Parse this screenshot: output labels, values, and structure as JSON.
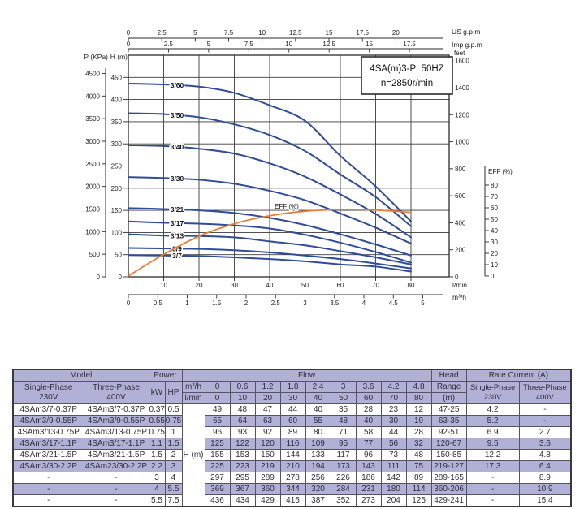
{
  "title_box": {
    "line1": "4SA(m)3-P  50HZ",
    "line2": "n=2850r/min"
  },
  "chart_data": {
    "type": "line",
    "title": "4SA(m)3-P 50HZ",
    "subtitle": "n=2850r/min",
    "x": [
      0,
      10,
      20,
      30,
      40,
      50,
      60,
      70,
      80
    ],
    "x_unit": "l/min",
    "ylabel": "H (m)",
    "ylim": [
      0,
      500
    ],
    "xlim": [
      0,
      90
    ],
    "grid": true,
    "series": [
      {
        "name": "3/60",
        "values": [
          436,
          434,
          429,
          415,
          387,
          352,
          273,
          204,
          125
        ]
      },
      {
        "name": "3/50",
        "values": [
          369,
          367,
          360,
          344,
          320,
          284,
          231,
          180,
          114
        ]
      },
      {
        "name": "3/40",
        "values": [
          297,
          295,
          289,
          278,
          256,
          226,
          186,
          142,
          89
        ]
      },
      {
        "name": "3/30",
        "values": [
          225,
          223,
          219,
          210,
          194,
          173,
          143,
          111,
          75
        ]
      },
      {
        "name": "3/21",
        "values": [
          155,
          153,
          150,
          144,
          133,
          117,
          96,
          73,
          48
        ]
      },
      {
        "name": "3/17",
        "values": [
          125,
          122,
          120,
          116,
          109,
          95,
          77,
          56,
          32
        ]
      },
      {
        "name": "3/13",
        "values": [
          96,
          93,
          92,
          89,
          80,
          71,
          58,
          44,
          28
        ]
      },
      {
        "name": "3/9",
        "values": [
          65,
          64,
          63,
          60,
          55,
          48,
          40,
          30,
          19
        ]
      },
      {
        "name": "3/7",
        "values": [
          49,
          48,
          47,
          44,
          40,
          35,
          28,
          23,
          12
        ]
      }
    ],
    "efficiency_series": {
      "name": "EFF (%)",
      "values": [
        0,
        19,
        35,
        46,
        53,
        57,
        58.5,
        58,
        56
      ]
    },
    "axes": {
      "us_gpm": {
        "label": "US g.p.m",
        "ticks": [
          0,
          2.5,
          5,
          7.5,
          10,
          12.5,
          15,
          17.5,
          20
        ]
      },
      "imp_gpm": {
        "label": "Imp g.p.m",
        "ticks": [
          0,
          2.5,
          5,
          7.5,
          10,
          12.5,
          15,
          17.5
        ]
      },
      "p_kpa": {
        "label": "P (KPa)",
        "ticks": [
          0,
          500,
          1000,
          1500,
          2000,
          2500,
          3000,
          3500,
          4000,
          4500
        ]
      },
      "h_m": {
        "label": "H (m)",
        "ticks": [
          0,
          50,
          100,
          150,
          200,
          250,
          300,
          350,
          400,
          450
        ]
      },
      "feet": {
        "label": "feet",
        "ticks": [
          0,
          200,
          400,
          600,
          800,
          1000,
          1200,
          1400,
          1600
        ]
      },
      "lmin": {
        "label": "l/min",
        "ticks": [
          10,
          20,
          30,
          40,
          50,
          60,
          70,
          80
        ]
      },
      "m3h": {
        "label": "m³/h",
        "ticks": [
          0,
          0.5,
          1,
          1.5,
          2,
          2.5,
          3,
          3.5,
          4,
          4.5,
          5
        ]
      },
      "eff": {
        "label": "EFF (%)",
        "ticks": [
          0,
          10,
          20,
          30,
          40,
          50,
          60,
          70,
          80
        ]
      }
    },
    "colors": {
      "curve": "#2e4c9a",
      "efficiency": "#ea7d36",
      "grid": "#3a3a3a",
      "text": "#1f1f1f"
    }
  },
  "table": {
    "stripe_color": "#b1b1d7",
    "header": {
      "model": "Model",
      "power": "Power",
      "flow": "Flow",
      "head": "Head",
      "rate_current": "Rate Current (A)",
      "single_phase": "Single-Phase\n230V",
      "three_phase": "Three-Phase\n400V",
      "kw": "kW",
      "hp": "HP",
      "m3h": "m³/h",
      "lmin": "l/min",
      "range": "Range",
      "range_unit": "(m)",
      "rc_single": "Single-Phase\n230V",
      "rc_three": "Three-Phase\n400V"
    },
    "h_m_label": "H (m)",
    "flow_m3h": [
      "0",
      "0.6",
      "1.2",
      "1.8",
      "2.4",
      "3",
      "3.6",
      "4.2",
      "4.8"
    ],
    "flow_lmin": [
      "0",
      "10",
      "20",
      "30",
      "40",
      "50",
      "60",
      "70",
      "80"
    ],
    "rows": [
      {
        "model_1ph": "4SAm3/7-0.37P",
        "model_3ph": "4SAm3/7-0.37P",
        "kw": "0.37",
        "hp": "0.5",
        "heads": [
          "49",
          "48",
          "47",
          "44",
          "40",
          "35",
          "28",
          "23",
          "12"
        ],
        "head_range": "47-25",
        "amp_1ph": "4.2",
        "amp_3ph": "-"
      },
      {
        "model_1ph": "4SAm3/9-0.55P",
        "model_3ph": "4SAm3/9-0.55P",
        "kw": "0.55",
        "hp": "0.75",
        "heads": [
          "65",
          "64",
          "63",
          "60",
          "55",
          "48",
          "40",
          "30",
          "19"
        ],
        "head_range": "63-35",
        "amp_1ph": "5.2",
        "amp_3ph": "-"
      },
      {
        "model_1ph": "4SAm3/13-0.75P",
        "model_3ph": "4SAm3/13-0.75P",
        "kw": "0.75",
        "hp": "1",
        "heads": [
          "96",
          "93",
          "92",
          "89",
          "80",
          "71",
          "58",
          "44",
          "28"
        ],
        "head_range": "92-51",
        "amp_1ph": "6.9",
        "amp_3ph": "2.7"
      },
      {
        "model_1ph": "4SAm3/17-1.1P",
        "model_3ph": "4SAm3/17-1.1P",
        "kw": "1.1",
        "hp": "1.5",
        "heads": [
          "125",
          "122",
          "120",
          "116",
          "109",
          "95",
          "77",
          "56",
          "32"
        ],
        "head_range": "120-67",
        "amp_1ph": "9.5",
        "amp_3ph": "3.6"
      },
      {
        "model_1ph": "4SAm3/21-1.5P",
        "model_3ph": "4SAm3/21-1.5P",
        "kw": "1.5",
        "hp": "2",
        "heads": [
          "155",
          "153",
          "150",
          "144",
          "133",
          "117",
          "96",
          "73",
          "48"
        ],
        "head_range": "150-85",
        "amp_1ph": "12.2",
        "amp_3ph": "4.8"
      },
      {
        "model_1ph": "4SAm3/30-2.2P",
        "model_3ph": "4SAm23/30-2.2P",
        "kw": "2.2",
        "hp": "3",
        "heads": [
          "225",
          "223",
          "219",
          "210",
          "194",
          "173",
          "143",
          "111",
          "75"
        ],
        "head_range": "219-127",
        "amp_1ph": "17.3",
        "amp_3ph": "6.4"
      },
      {
        "model_1ph": "-",
        "model_3ph": "-",
        "kw": "3",
        "hp": "4",
        "heads": [
          "297",
          "295",
          "289",
          "278",
          "256",
          "226",
          "186",
          "142",
          "89"
        ],
        "head_range": "289-165",
        "amp_1ph": "-",
        "amp_3ph": "8.9"
      },
      {
        "model_1ph": "-",
        "model_3ph": "-",
        "kw": "4",
        "hp": "5.5",
        "heads": [
          "369",
          "367",
          "360",
          "344",
          "320",
          "284",
          "231",
          "180",
          "114"
        ],
        "head_range": "360-206",
        "amp_1ph": "-",
        "amp_3ph": "10.9"
      },
      {
        "model_1ph": "-",
        "model_3ph": "-",
        "kw": "5.5",
        "hp": "7.5",
        "heads": [
          "436",
          "434",
          "429",
          "415",
          "387",
          "352",
          "273",
          "204",
          "125"
        ],
        "head_range": "429-241",
        "amp_1ph": "-",
        "amp_3ph": "15.4"
      }
    ]
  }
}
